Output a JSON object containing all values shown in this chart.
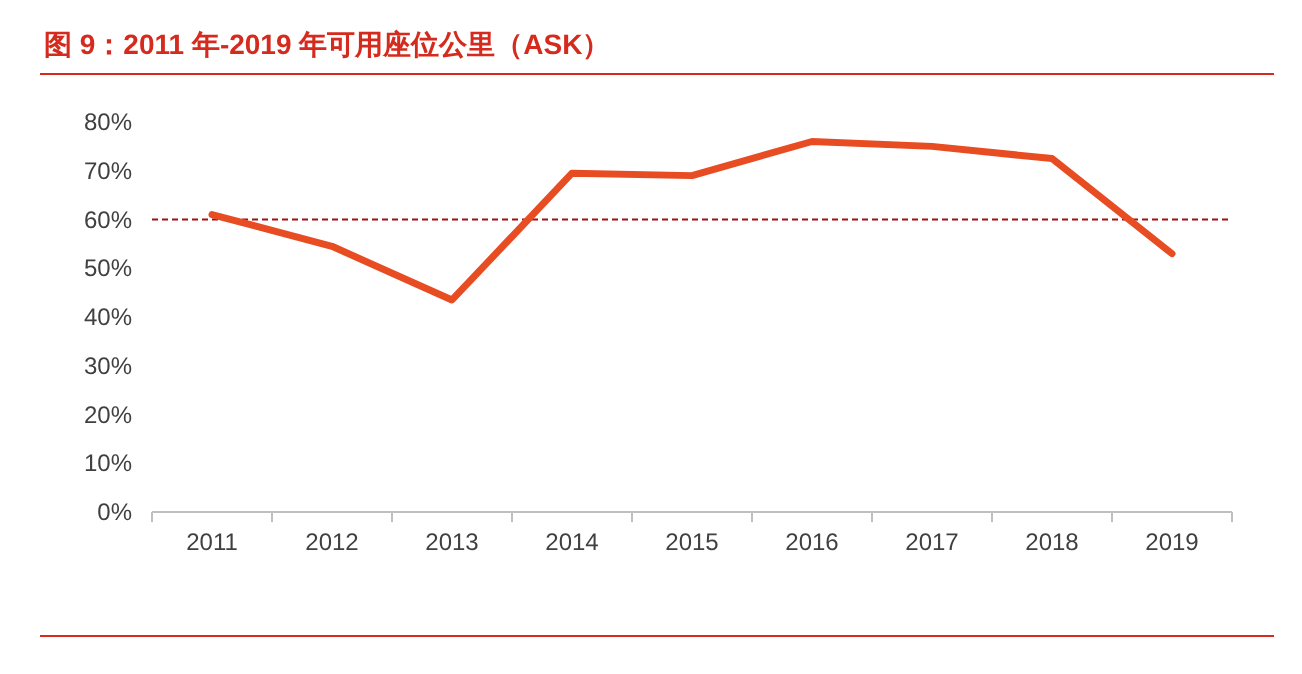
{
  "chart_data": {
    "type": "line",
    "title": "图 9：2011 年-2019 年可用座位公里（ASK）",
    "categories": [
      "2011",
      "2012",
      "2013",
      "2014",
      "2015",
      "2016",
      "2017",
      "2018",
      "2019"
    ],
    "series": [
      {
        "color": "#e84c22",
        "values": [
          61,
          54.5,
          43.5,
          69.5,
          69,
          76,
          75,
          72.5,
          53
        ]
      }
    ],
    "ylim": [
      0,
      80
    ],
    "yticks": [
      {
        "value": 0,
        "label": "0%"
      },
      {
        "value": 10,
        "label": "10%"
      },
      {
        "value": 20,
        "label": "20%"
      },
      {
        "value": 30,
        "label": "30%"
      },
      {
        "value": 40,
        "label": "40%"
      },
      {
        "value": 50,
        "label": "50%"
      },
      {
        "value": 60,
        "label": "60%"
      },
      {
        "value": 70,
        "label": "70%"
      },
      {
        "value": 80,
        "label": "80%"
      }
    ],
    "ref_lines": [
      {
        "axis": "y",
        "value": 60,
        "color": "#a01010",
        "line_style": "dashed"
      }
    ],
    "grid": false,
    "marker": "none",
    "line_style": "solid"
  }
}
